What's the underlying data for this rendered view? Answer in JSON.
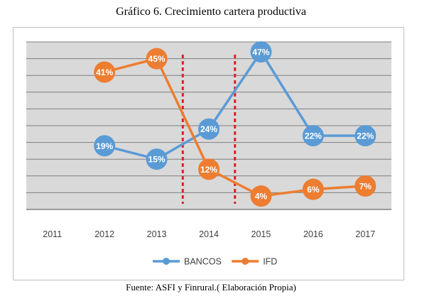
{
  "header": {
    "title": "Gráfico 6. Crecimiento cartera productiva"
  },
  "footer": {
    "source": "Fuente: ASFI y Finrural.( Elaboración Propia)"
  },
  "colors": {
    "bancos": "#5b9bd5",
    "ifd": "#ed7d31",
    "marker": "#e02020",
    "plot_bg": "#d9d9d9",
    "grid": "#7f7f7f"
  },
  "chart_data": {
    "type": "line",
    "title": "",
    "xlabel": "",
    "ylabel": "",
    "categories": [
      "2011",
      "2012",
      "2013",
      "2014",
      "2015",
      "2016",
      "2017"
    ],
    "ylim": [
      0,
      50
    ],
    "grid": true,
    "legend_position": "bottom",
    "series": [
      {
        "name": "BANCOS",
        "color": "#5b9bd5",
        "values": [
          null,
          19,
          15,
          24,
          47,
          22,
          22
        ],
        "labels": [
          null,
          "19%",
          "15%",
          "24%",
          "47%",
          "22%",
          "22%"
        ]
      },
      {
        "name": "IFD",
        "color": "#ed7d31",
        "values": [
          null,
          41,
          45,
          12,
          4,
          6,
          7
        ],
        "labels": [
          null,
          "41%",
          "45%",
          "12%",
          "4%",
          "6%",
          "7%"
        ]
      }
    ],
    "annotations": [
      {
        "type": "vertical-dashed-line",
        "between": [
          "2013",
          "2014"
        ],
        "color": "#e02020"
      },
      {
        "type": "vertical-dashed-line",
        "between": [
          "2014",
          "2015"
        ],
        "color": "#e02020"
      }
    ]
  }
}
